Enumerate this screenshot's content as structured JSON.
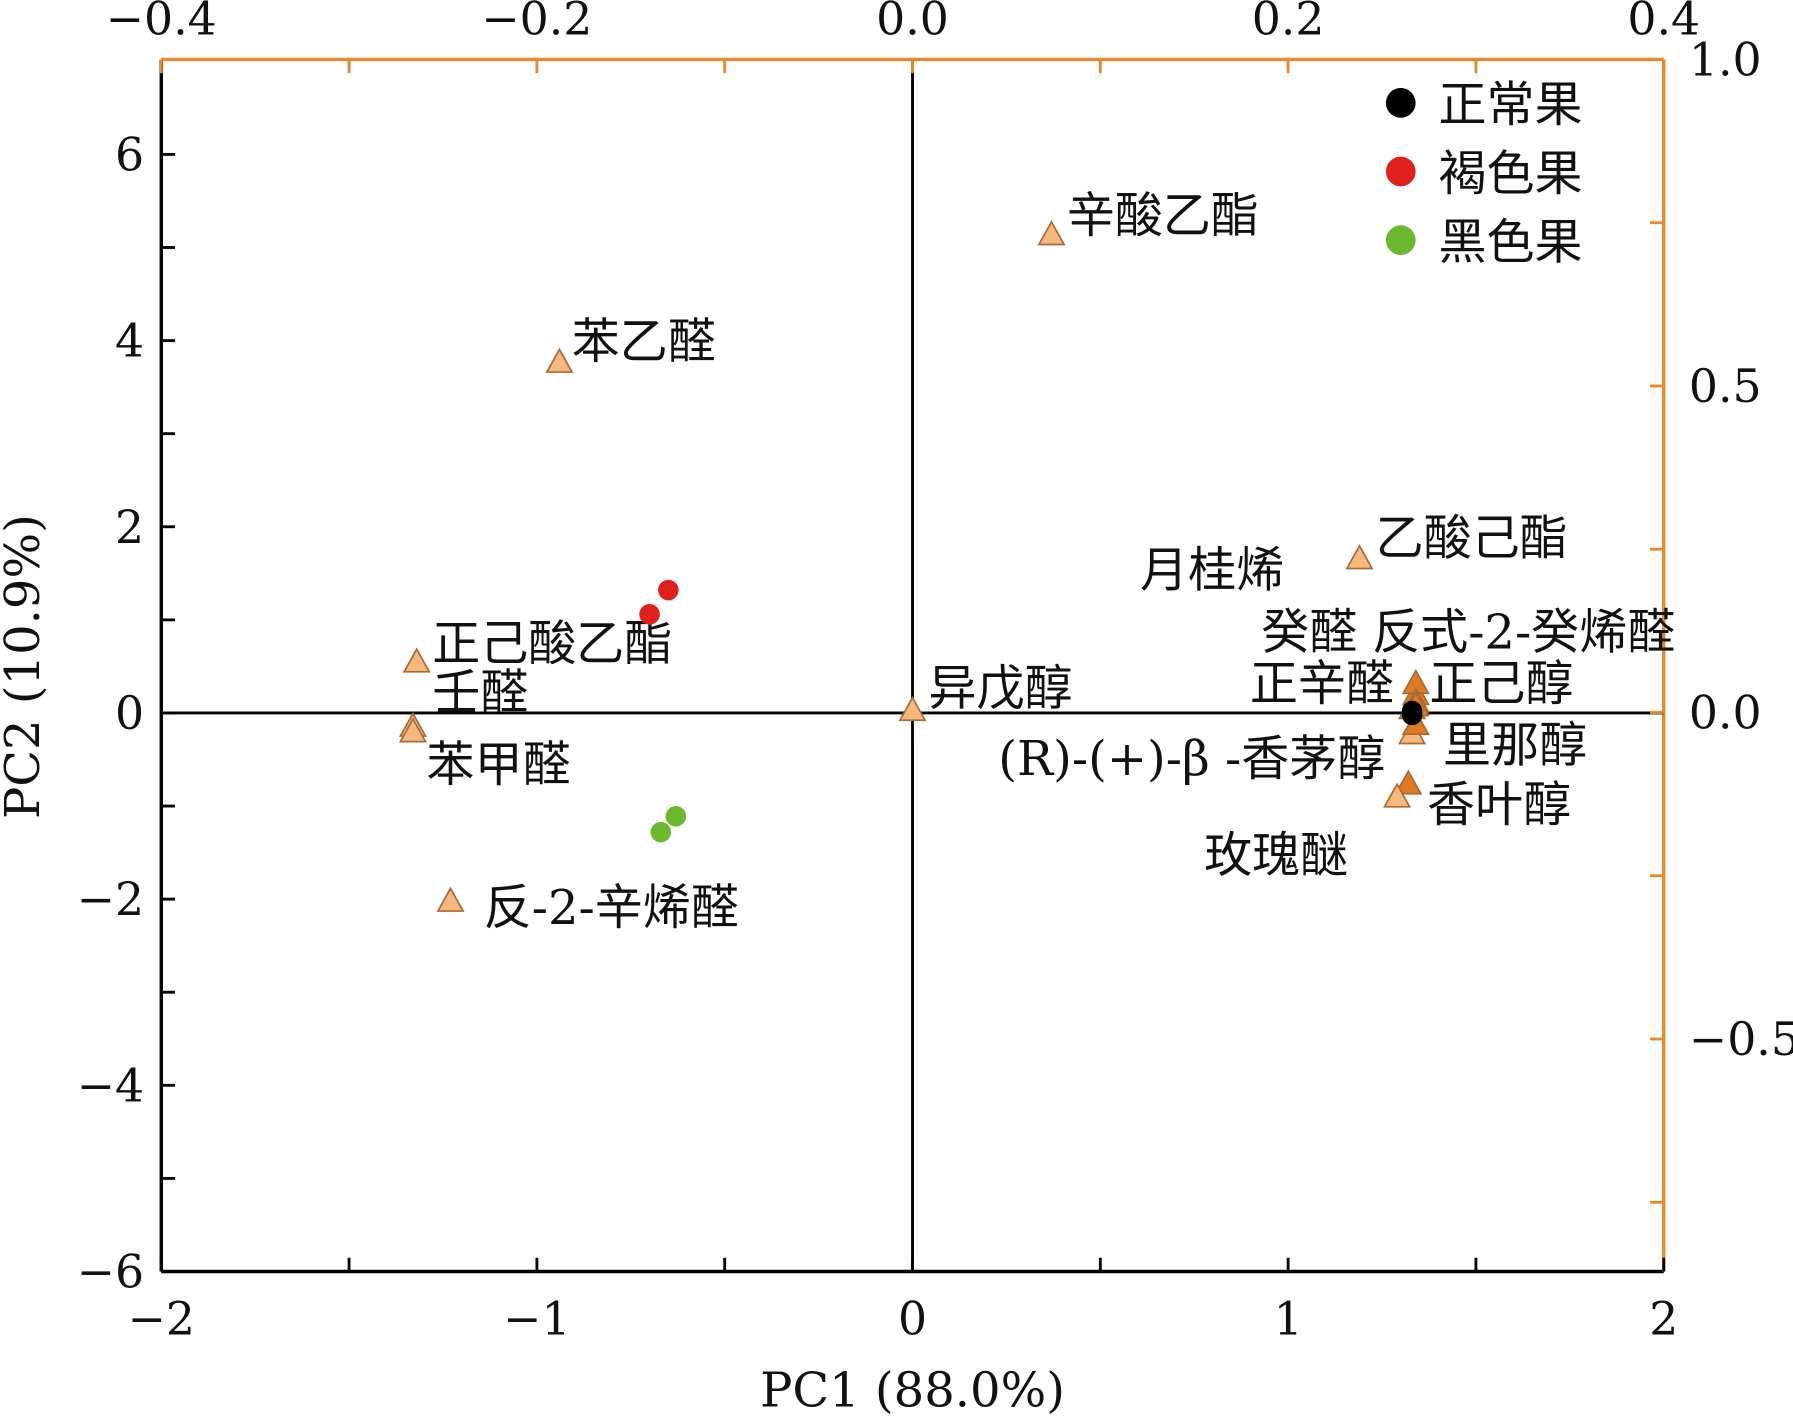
{
  "chart_data": {
    "type": "scatter",
    "title": "",
    "xlabel": "PC1 (88.0%)",
    "ylabel": "PC2 (10.9%)",
    "xlim": [
      -2,
      2
    ],
    "ylim": [
      -6,
      7.02
    ],
    "x_ticks": [
      "-2",
      "-1",
      "0",
      "1",
      "2"
    ],
    "y_ticks": [
      "-6",
      "-4",
      "-2",
      "0",
      "2",
      "4",
      "6"
    ],
    "secondary_x": {
      "lim": [
        -0.4,
        0.4
      ],
      "ticks": [
        "-0.4",
        "-0.2",
        "0.0",
        "0.2",
        "0.4"
      ]
    },
    "secondary_y": {
      "lim": [
        -0.856,
        1.0
      ],
      "ticks": [
        "-0.5",
        "0.0",
        "0.5",
        "1.0"
      ]
    },
    "grid": false,
    "legend_position": "top-right",
    "colors": {
      "axis_secondary": "#E8892B",
      "loading_fill": "#F5B97F",
      "loading_fill_dark": "#E07A20",
      "loading_stroke": "#A86A38"
    },
    "series": [
      {
        "name": "正常果",
        "color": "#000000",
        "marker": "circle",
        "points": [
          {
            "x": 1.33,
            "y": 0.02
          },
          {
            "x": 1.33,
            "y": -0.02
          }
        ]
      },
      {
        "name": "褐色果",
        "color": "#E0201C",
        "marker": "circle",
        "points": [
          {
            "x": -0.65,
            "y": 1.32
          },
          {
            "x": -0.7,
            "y": 1.06
          }
        ]
      },
      {
        "name": "黑色果",
        "color": "#6DB82E",
        "marker": "circle",
        "points": [
          {
            "x": -0.63,
            "y": -1.11
          },
          {
            "x": -0.67,
            "y": -1.28
          }
        ]
      }
    ],
    "loadings": [
      {
        "label": "辛酸乙酯",
        "x": 0.37,
        "y": 5.14
      },
      {
        "label": "苯乙醛",
        "x": -0.94,
        "y": 3.77
      },
      {
        "label": "乙酸己酯",
        "x": 1.19,
        "y": 1.66
      },
      {
        "label": "正己酸乙酯",
        "x": -1.32,
        "y": 0.55
      },
      {
        "label": "壬醛",
        "x": -1.33,
        "y": -0.14
      },
      {
        "label": "苯甲醛",
        "x": -1.33,
        "y": -0.2
      },
      {
        "label": "异戊醇",
        "x": 0.0,
        "y": 0.03
      },
      {
        "label": "反-2-辛烯醛",
        "x": -1.23,
        "y": -2.02
      },
      {
        "label": "月桂烯",
        "x": 1.33,
        "y": 0.05
      },
      {
        "label": "癸醛",
        "x": 1.34,
        "y": 0.2
      },
      {
        "label": "反式-2-癸烯醛",
        "x": 1.34,
        "y": 0.32
      },
      {
        "label": "正辛醛",
        "x": 1.34,
        "y": 0.12
      },
      {
        "label": "正己醇",
        "x": 1.34,
        "y": 0.08
      },
      {
        "label": "(R)-(+)-β -香茅醇",
        "x": 1.33,
        "y": -0.22
      },
      {
        "label": "里那醇",
        "x": 1.34,
        "y": -0.12
      },
      {
        "label": "香叶醇",
        "x": 1.32,
        "y": -0.76
      },
      {
        "label": "玫瑰醚",
        "x": 1.29,
        "y": -0.9
      }
    ]
  }
}
